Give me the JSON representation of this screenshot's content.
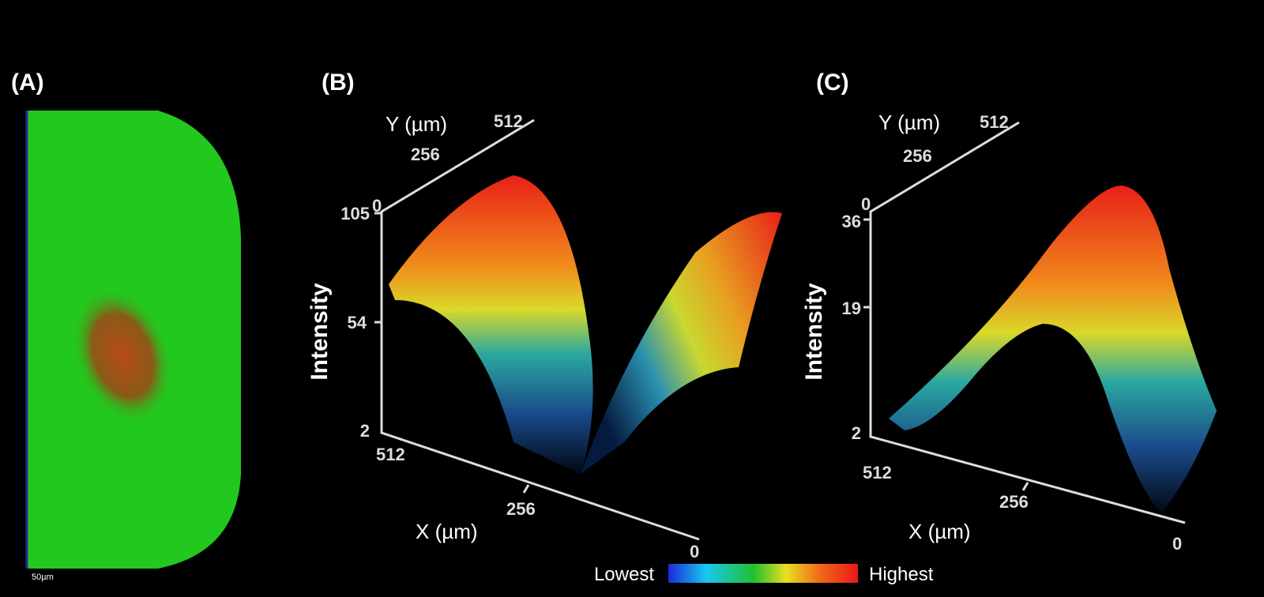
{
  "panels": [
    {
      "label": "(A)",
      "scale_bar": "50µm"
    },
    {
      "label": "(B)",
      "y_axis": {
        "title": "Y (µm)",
        "ticks": [
          0,
          256,
          512
        ]
      },
      "intensity_axis": {
        "title": "Intensity",
        "ticks": [
          2,
          54,
          105
        ]
      },
      "x_axis": {
        "title": "X (µm)",
        "ticks": [
          512,
          256,
          0
        ]
      }
    },
    {
      "label": "(C)",
      "y_axis": {
        "title": "Y (µm)",
        "ticks": [
          0,
          256,
          512
        ]
      },
      "intensity_axis": {
        "title": "Intensity",
        "ticks": [
          2,
          19,
          36
        ]
      },
      "x_axis": {
        "title": "X (µm)",
        "ticks": [
          512,
          256,
          0
        ]
      }
    }
  ],
  "colorbar": {
    "low": "Lowest",
    "high": "Highest"
  }
}
